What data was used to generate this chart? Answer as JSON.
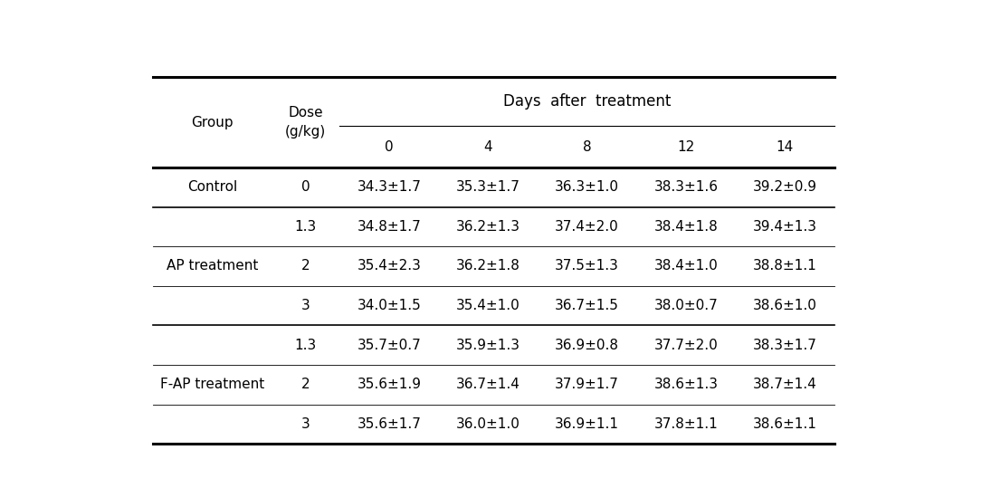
{
  "col_headers_top": "Days  after  treatment",
  "col_headers": [
    "Group",
    "Dose\n(g/kg)",
    "0",
    "4",
    "8",
    "12",
    "14"
  ],
  "rows": [
    {
      "group": "Control",
      "dose": "0",
      "values": [
        "34.3±1.7",
        "35.3±1.7",
        "36.3±1.0",
        "38.3±1.6",
        "39.2±0.9"
      ]
    },
    {
      "group": "AP treatment",
      "dose": "1.3",
      "values": [
        "34.8±1.7",
        "36.2±1.3",
        "37.4±2.0",
        "38.4±1.8",
        "39.4±1.3"
      ]
    },
    {
      "group": "",
      "dose": "2",
      "values": [
        "35.4±2.3",
        "36.2±1.8",
        "37.5±1.3",
        "38.4±1.0",
        "38.8±1.1"
      ]
    },
    {
      "group": "",
      "dose": "3",
      "values": [
        "34.0±1.5",
        "35.4±1.0",
        "36.7±1.5",
        "38.0±0.7",
        "38.6±1.0"
      ]
    },
    {
      "group": "F-AP treatment",
      "dose": "1.3",
      "values": [
        "35.7±0.7",
        "35.9±1.3",
        "36.9±0.8",
        "37.7±2.0",
        "38.3±1.7"
      ]
    },
    {
      "group": "",
      "dose": "2",
      "values": [
        "35.6±1.9",
        "36.7±1.4",
        "37.9±1.7",
        "38.6±1.3",
        "38.7±1.4"
      ]
    },
    {
      "group": "",
      "dose": "3",
      "values": [
        "35.6±1.7",
        "36.0±1.0",
        "36.9±1.1",
        "37.8±1.1",
        "38.6±1.1"
      ]
    }
  ],
  "group_spans": {
    "Control": [
      0,
      0
    ],
    "AP treatment": [
      1,
      3
    ],
    "F-AP treatment": [
      4,
      6
    ]
  },
  "bg_color": "#ffffff",
  "text_color": "#000000",
  "font_size": 11,
  "header_font_size": 12
}
